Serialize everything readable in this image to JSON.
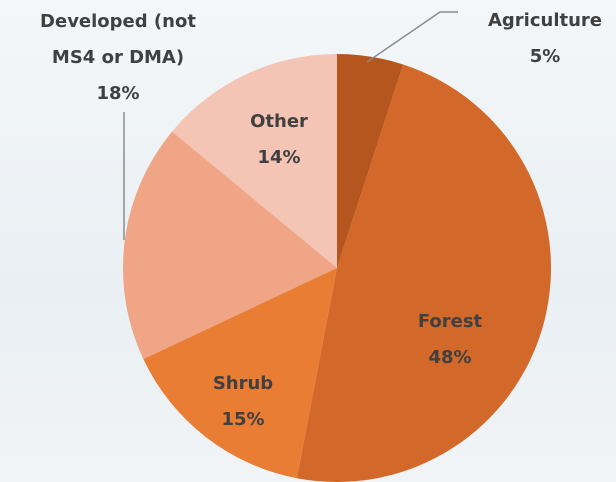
{
  "chart_data": {
    "type": "pie",
    "categories": [
      "Agriculture",
      "Forest",
      "Shrub",
      "Developed (not MS4 or DMA)",
      "Other"
    ],
    "values": [
      5,
      48,
      15,
      18,
      14
    ],
    "value_labels": [
      "5%",
      "48%",
      "15%",
      "18%",
      "14%"
    ],
    "colors": [
      "#b5561f",
      "#d2692a",
      "#ea7d34",
      "#efa586",
      "#f4c4b4"
    ]
  }
}
